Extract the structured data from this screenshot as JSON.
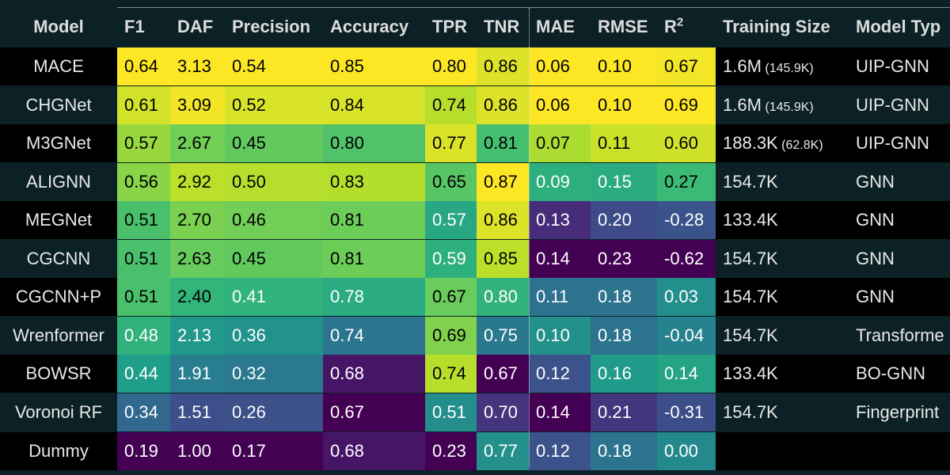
{
  "chart_data": {
    "type": "table",
    "columns": [
      "Model",
      "F1",
      "DAF",
      "Precision",
      "Accuracy",
      "TPR",
      "TNR",
      "MAE",
      "RMSE",
      "R",
      "Training Size",
      "Model Typ"
    ],
    "r2_superscript": "2",
    "rows": [
      {
        "model": "MACE",
        "values": [
          "0.64",
          "3.13",
          "0.54",
          "0.85",
          "0.80",
          "0.86",
          "0.06",
          "0.10",
          "0.67"
        ],
        "training_size": "1.6M",
        "training_size_note": "(145.9K)",
        "model_type": "UIP-GNN"
      },
      {
        "model": "CHGNet",
        "values": [
          "0.61",
          "3.09",
          "0.52",
          "0.84",
          "0.74",
          "0.86",
          "0.06",
          "0.10",
          "0.69"
        ],
        "training_size": "1.6M",
        "training_size_note": "(145.9K)",
        "model_type": "UIP-GNN"
      },
      {
        "model": "M3GNet",
        "values": [
          "0.57",
          "2.67",
          "0.45",
          "0.80",
          "0.77",
          "0.81",
          "0.07",
          "0.11",
          "0.60"
        ],
        "training_size": "188.3K",
        "training_size_note": "(62.8K)",
        "model_type": "UIP-GNN"
      },
      {
        "model": "ALIGNN",
        "values": [
          "0.56",
          "2.92",
          "0.50",
          "0.83",
          "0.65",
          "0.87",
          "0.09",
          "0.15",
          "0.27"
        ],
        "training_size": "154.7K",
        "training_size_note": "",
        "model_type": "GNN"
      },
      {
        "model": "MEGNet",
        "values": [
          "0.51",
          "2.70",
          "0.46",
          "0.81",
          "0.57",
          "0.86",
          "0.13",
          "0.20",
          "-0.28"
        ],
        "training_size": "133.4K",
        "training_size_note": "",
        "model_type": "GNN"
      },
      {
        "model": "CGCNN",
        "values": [
          "0.51",
          "2.63",
          "0.45",
          "0.81",
          "0.59",
          "0.85",
          "0.14",
          "0.23",
          "-0.62"
        ],
        "training_size": "154.7K",
        "training_size_note": "",
        "model_type": "GNN"
      },
      {
        "model": "CGCNN+P",
        "values": [
          "0.51",
          "2.40",
          "0.41",
          "0.78",
          "0.67",
          "0.80",
          "0.11",
          "0.18",
          "0.03"
        ],
        "training_size": "154.7K",
        "training_size_note": "",
        "model_type": "GNN"
      },
      {
        "model": "Wrenformer",
        "values": [
          "0.48",
          "2.13",
          "0.36",
          "0.74",
          "0.69",
          "0.75",
          "0.10",
          "0.18",
          "-0.04"
        ],
        "training_size": "154.7K",
        "training_size_note": "",
        "model_type": "Transforme"
      },
      {
        "model": "BOWSR",
        "values": [
          "0.44",
          "1.91",
          "0.32",
          "0.68",
          "0.74",
          "0.67",
          "0.12",
          "0.16",
          "0.14"
        ],
        "training_size": "133.4K",
        "training_size_note": "",
        "model_type": "BO-GNN"
      },
      {
        "model": "Voronoi RF",
        "values": [
          "0.34",
          "1.51",
          "0.26",
          "0.67",
          "0.51",
          "0.70",
          "0.14",
          "0.21",
          "-0.31"
        ],
        "training_size": "154.7K",
        "training_size_note": "",
        "model_type": "Fingerprint"
      },
      {
        "model": "Dummy",
        "values": [
          "0.19",
          "1.00",
          "0.17",
          "0.68",
          "0.23",
          "0.77",
          "0.12",
          "0.18",
          "0.00"
        ],
        "training_size": "",
        "training_size_note": "",
        "model_type": ""
      }
    ],
    "metric_higher_is_better": [
      true,
      true,
      true,
      true,
      true,
      true,
      false,
      false,
      true
    ],
    "colormap": "viridis"
  }
}
